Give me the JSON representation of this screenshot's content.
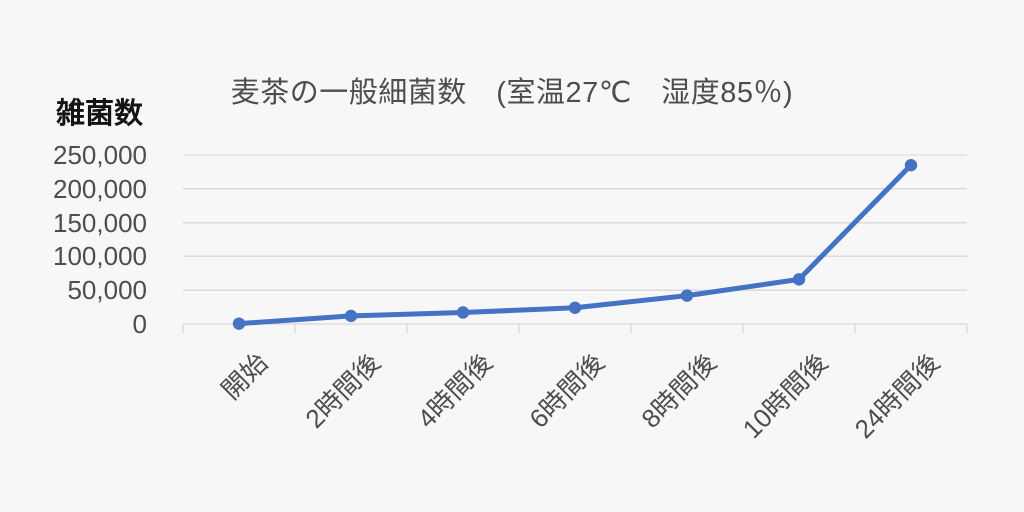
{
  "colors": {
    "background": "#f7f7f7",
    "text": "#4d4d4d",
    "series": "#4472C4",
    "gridline": "#dadada",
    "axis": "#cfcfcf"
  },
  "chart_data": {
    "type": "line",
    "title": "麦茶の一般細菌数　(室温27℃　湿度85％)",
    "ylabel": "雑菌数",
    "xlabel": "",
    "categories": [
      "開始",
      "2時間後",
      "4時間後",
      "6時間後",
      "8時間後",
      "10時間後",
      "24時間後"
    ],
    "series": [
      {
        "name": "一般細菌数",
        "values": [
          500,
          12000,
          17000,
          24000,
          42000,
          66000,
          235000
        ]
      }
    ],
    "ylim": [
      0,
      250000
    ],
    "y_ticks": [
      0,
      50000,
      100000,
      150000,
      200000,
      250000
    ],
    "y_tick_labels": [
      "0",
      "50,000",
      "100,000",
      "150,000",
      "200,000",
      "250,000"
    ],
    "grid": true,
    "legend": false,
    "x_label_rotation_deg": 45
  }
}
